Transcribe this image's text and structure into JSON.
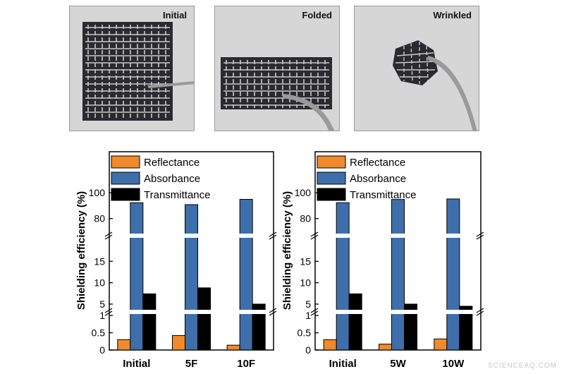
{
  "photos": [
    {
      "label": "Initial"
    },
    {
      "label": "Folded"
    },
    {
      "label": "Wrinkled"
    }
  ],
  "colors": {
    "reflectance": "#f08a2c",
    "absorbance": "#3f6faa",
    "transmittance": "#000000"
  },
  "watermark": "SCIENCEAQ.COM",
  "chart_data": [
    {
      "type": "bar",
      "ylabel": "Shielding efficiency (%)",
      "categories": [
        "Initial",
        "5F",
        "10F"
      ],
      "legend": [
        "Reflectance",
        "Absorbance",
        "Transmittance"
      ],
      "series": [
        {
          "name": "Reflectance",
          "values": [
            0.3,
            0.42,
            0.14
          ]
        },
        {
          "name": "Absorbance",
          "values": [
            92.3,
            90.8,
            94.9
          ]
        },
        {
          "name": "Transmittance",
          "values": [
            7.4,
            8.8,
            5.0
          ]
        }
      ],
      "broken_axis_segments": [
        {
          "range": [
            0,
            1
          ],
          "ticks": [
            "0",
            "0.5",
            "1"
          ]
        },
        {
          "range": [
            4,
            20
          ],
          "ticks": [
            "5",
            "10",
            "15"
          ]
        },
        {
          "range": [
            70,
            105
          ],
          "ticks": [
            "80",
            "100"
          ]
        }
      ]
    },
    {
      "type": "bar",
      "ylabel": "Shielding efficiency (%)",
      "categories": [
        "Initial",
        "5W",
        "10W"
      ],
      "legend": [
        "Reflectance",
        "Absorbance",
        "Transmittance"
      ],
      "series": [
        {
          "name": "Reflectance",
          "values": [
            0.3,
            0.17,
            0.32
          ]
        },
        {
          "name": "Absorbance",
          "values": [
            92.3,
            94.8,
            95.2
          ]
        },
        {
          "name": "Transmittance",
          "values": [
            7.4,
            5.0,
            4.5
          ]
        }
      ],
      "broken_axis_segments": [
        {
          "range": [
            0,
            1
          ],
          "ticks": [
            "0",
            "0.5",
            "1"
          ]
        },
        {
          "range": [
            4,
            20
          ],
          "ticks": [
            "5",
            "10",
            "15"
          ]
        },
        {
          "range": [
            70,
            105
          ],
          "ticks": [
            "80",
            "100"
          ]
        }
      ]
    }
  ]
}
